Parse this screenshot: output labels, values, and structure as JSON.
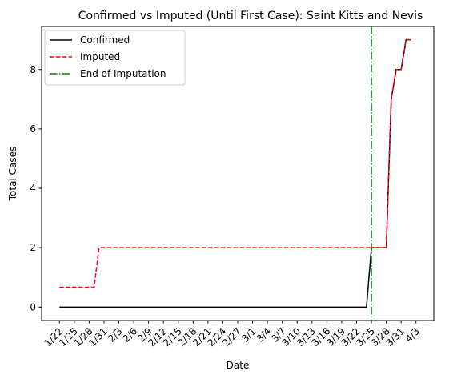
{
  "chart_data": {
    "type": "line",
    "title": "Confirmed vs Imputed (Until First Case): Saint Kitts and Nevis",
    "xlabel": "Date",
    "ylabel": "Total Cases",
    "x_tick_labels": [
      "1/22",
      "1/25",
      "1/28",
      "1/31",
      "2/3",
      "2/6",
      "2/9",
      "2/12",
      "2/15",
      "2/18",
      "2/21",
      "2/24",
      "2/27",
      "3/1",
      "3/4",
      "3/7",
      "3/10",
      "3/13",
      "3/16",
      "3/19",
      "3/22",
      "3/25",
      "3/28",
      "3/31",
      "4/3"
    ],
    "y_ticks": [
      0,
      2,
      4,
      6,
      8
    ],
    "ylim": [
      -0.45,
      9.45
    ],
    "grid": false,
    "legend_position": "top-left",
    "series": [
      {
        "name": "Confirmed",
        "color": "#000000",
        "style": "solid",
        "points": [
          [
            "1/22",
            0
          ],
          [
            "3/24",
            0
          ],
          [
            "3/25",
            2
          ],
          [
            "3/28",
            2
          ],
          [
            "3/29",
            7
          ],
          [
            "3/30",
            8
          ],
          [
            "3/31",
            8
          ],
          [
            "4/1",
            9
          ],
          [
            "4/2",
            9
          ]
        ]
      },
      {
        "name": "Imputed",
        "color": "#ff0000",
        "style": "dashed",
        "points": [
          [
            "1/22",
            0.67
          ],
          [
            "1/29",
            0.67
          ],
          [
            "1/30",
            2
          ],
          [
            "3/28",
            2
          ],
          [
            "3/29",
            7
          ],
          [
            "3/30",
            8
          ],
          [
            "3/31",
            8
          ],
          [
            "4/1",
            9
          ],
          [
            "4/2",
            9
          ]
        ]
      }
    ],
    "reference_line": {
      "name": "End of Imputation",
      "color": "#008000",
      "style": "dashdot",
      "x": "3/25"
    }
  }
}
